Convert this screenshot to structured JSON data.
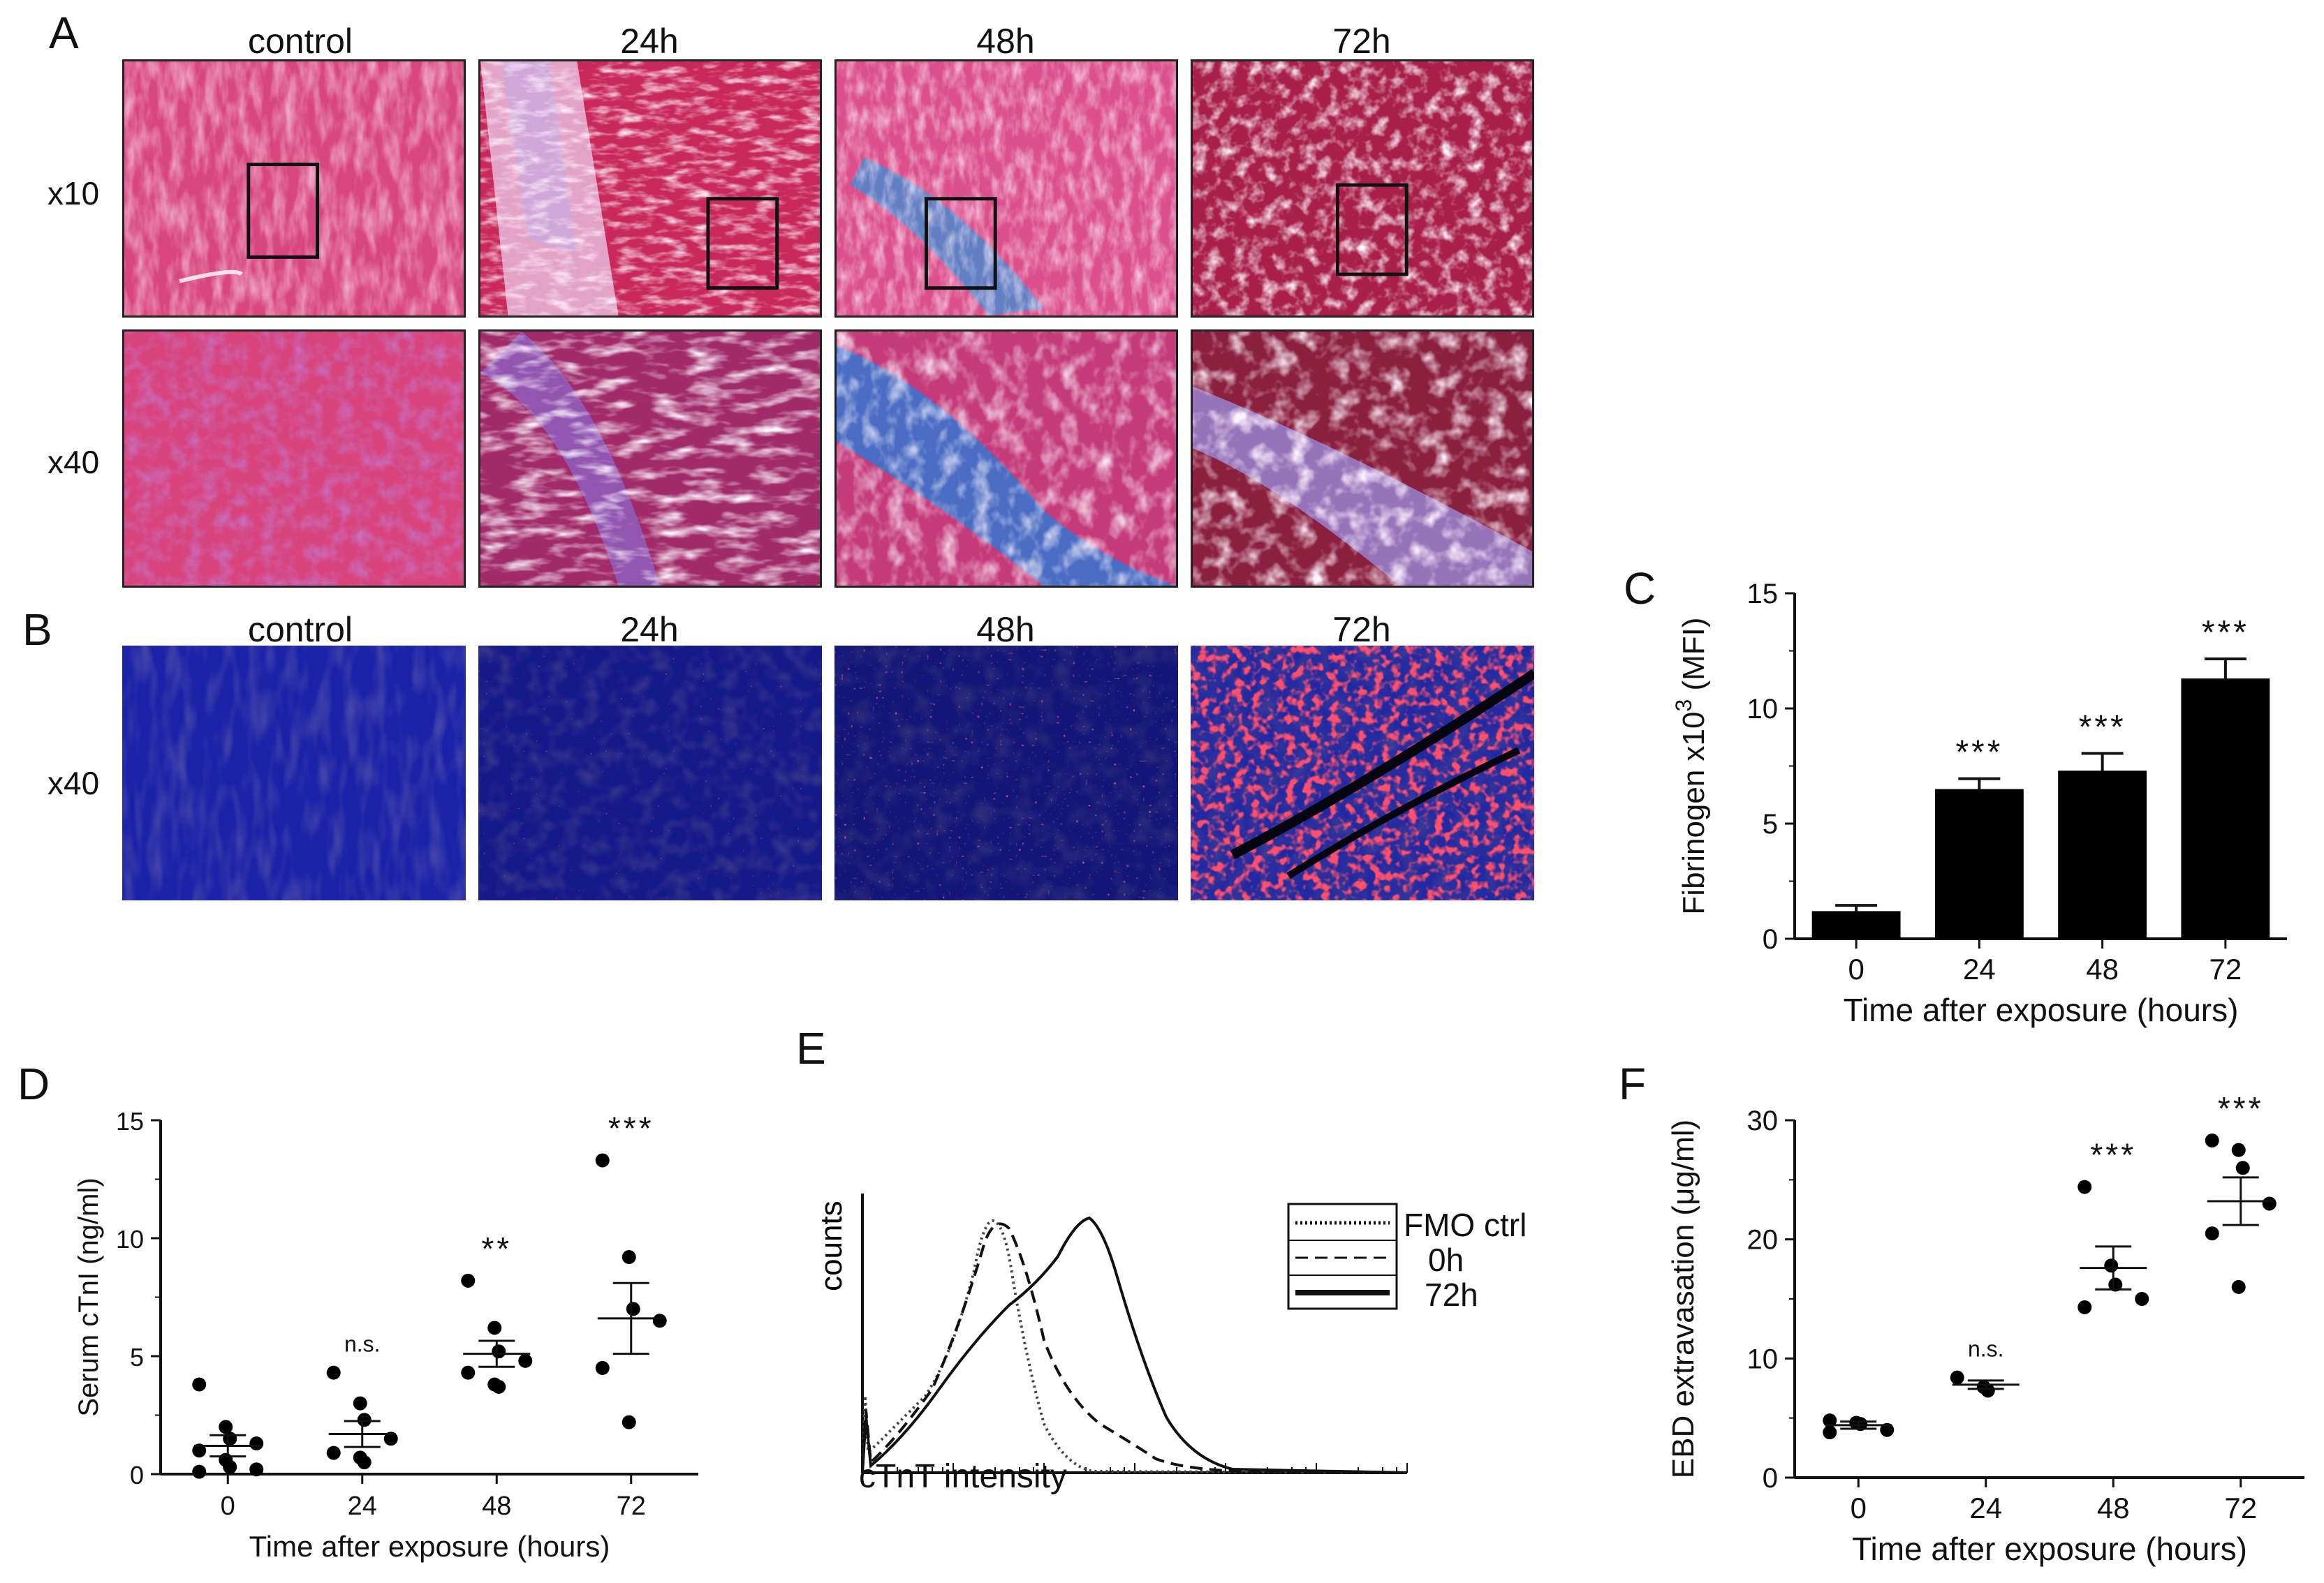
{
  "panels": {
    "A": {
      "letter": "A",
      "columns": [
        "control",
        "24h",
        "48h",
        "72h"
      ],
      "rows": [
        "x10",
        "x40"
      ]
    },
    "B": {
      "letter": "B",
      "columns": [
        "control",
        "24h",
        "48h",
        "72h"
      ],
      "rows": [
        "x40"
      ]
    },
    "E": {
      "letter": "E",
      "ylabel": "counts",
      "xlabel": "cTnT intensity",
      "legend": [
        "FMO ctrl",
        "0h",
        "72h"
      ]
    }
  },
  "colors": {
    "trichrome_base": "#d23c7e",
    "trichrome_collagen": "#3a7fd0",
    "fluor_background": "#1a1f9a",
    "fluor_signal": "#ff1a2a"
  },
  "chart_data": [
    {
      "id": "C",
      "letter": "C",
      "type": "bar",
      "categories": [
        "0",
        "24",
        "48",
        "72"
      ],
      "values": [
        1.2,
        6.5,
        7.3,
        11.3
      ],
      "errors": [
        0.25,
        0.45,
        0.75,
        0.85
      ],
      "significance": [
        "",
        "***",
        "***",
        "***"
      ],
      "xlabel": "Time after exposure (hours)",
      "ylabel": "Fibrinogen x10",
      "ylabel_sup": "3",
      "ylabel_tail": " (MFI)",
      "ylim": [
        0,
        15
      ],
      "yticks": [
        0,
        5,
        10,
        15
      ],
      "bar_color": "#000000"
    },
    {
      "id": "D",
      "letter": "D",
      "type": "scatter",
      "categories": [
        "0",
        "24",
        "48",
        "72"
      ],
      "points": [
        [
          3.8,
          2.0,
          1.5,
          1.3,
          1.0,
          0.6,
          0.3,
          0.2,
          0.1
        ],
        [
          4.3,
          3.0,
          2.3,
          1.5,
          0.9,
          0.7,
          0.5
        ],
        [
          8.2,
          6.2,
          5.2,
          4.8,
          4.3,
          3.8,
          3.7
        ],
        [
          13.3,
          9.2,
          7.0,
          6.5,
          4.5,
          2.2
        ]
      ],
      "means": [
        1.2,
        1.7,
        5.1,
        6.6
      ],
      "sem": [
        0.45,
        0.55,
        0.55,
        1.5
      ],
      "significance": [
        "",
        "n.s.",
        "**",
        "***"
      ],
      "xlabel": "Time after exposure (hours)",
      "ylabel": "Serum cTnI (ng/ml)",
      "ylim": [
        0,
        15
      ],
      "yticks": [
        0,
        5,
        10,
        15
      ]
    },
    {
      "id": "F",
      "letter": "F",
      "type": "scatter",
      "categories": [
        "0",
        "24",
        "48",
        "72"
      ],
      "points": [
        [
          4.8,
          4.6,
          4.5,
          4.0,
          3.8
        ],
        [
          8.4,
          7.6,
          7.3
        ],
        [
          24.4,
          17.8,
          16.2,
          15.0,
          14.3
        ],
        [
          28.3,
          27.5,
          26.0,
          23.0,
          20.5,
          16.0
        ]
      ],
      "means": [
        4.4,
        7.8,
        17.6,
        23.2
      ],
      "sem": [
        0.3,
        0.35,
        1.8,
        2.0
      ],
      "significance": [
        "",
        "n.s.",
        "***",
        "***"
      ],
      "xlabel": "Time after exposure (hours)",
      "ylabel": "EBD extravasation (μg/ml)",
      "ylim": [
        0,
        30
      ],
      "yticks": [
        0,
        10,
        20,
        30
      ]
    }
  ]
}
